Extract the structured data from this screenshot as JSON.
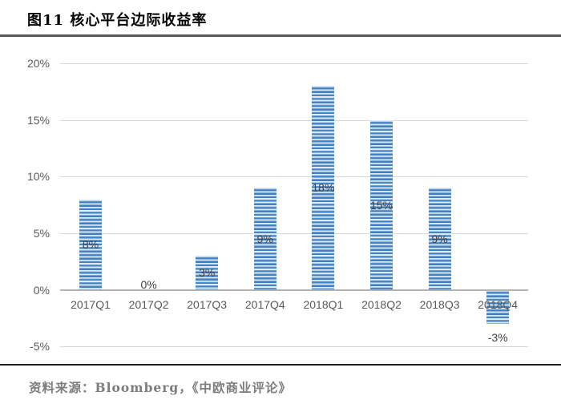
{
  "figure": {
    "title": "图11  核心平台边际收益率",
    "source": "资料来源：Bloomberg，《中欧商业评论》"
  },
  "chart_data": {
    "type": "bar",
    "title": "核心平台边际收益率",
    "categories": [
      "2017Q1",
      "2017Q2",
      "2017Q3",
      "2017Q4",
      "2018Q1",
      "2018Q2",
      "2018Q3",
      "2018Q4"
    ],
    "values": [
      8,
      0,
      3,
      9,
      18,
      15,
      9,
      -3
    ],
    "data_labels": [
      "8%",
      "0%",
      "3%",
      "9%",
      "18%",
      "15%",
      "9%",
      "-3%"
    ],
    "y_ticks": [
      20,
      15,
      10,
      5,
      0,
      -5
    ],
    "y_tick_labels": [
      "20%",
      "15%",
      "10%",
      "5%",
      "0%",
      "-5%"
    ],
    "ylim": [
      -5,
      20
    ],
    "xlabel": "",
    "ylabel": "",
    "grid": true,
    "legend": "none",
    "unit": "percent",
    "colors": {
      "bar_stripe_dark": "#4584C6",
      "bar_stripe_mid": "#9CC2E7",
      "bar_stripe_light": "#DEEAF6",
      "gridline": "#D9D9D9",
      "axis_line": "#B3B3B3",
      "tick_text": "#595959",
      "data_label_text": "#3F3F3F",
      "title_text": "#000000",
      "source_text": "#7C7C7C"
    }
  }
}
